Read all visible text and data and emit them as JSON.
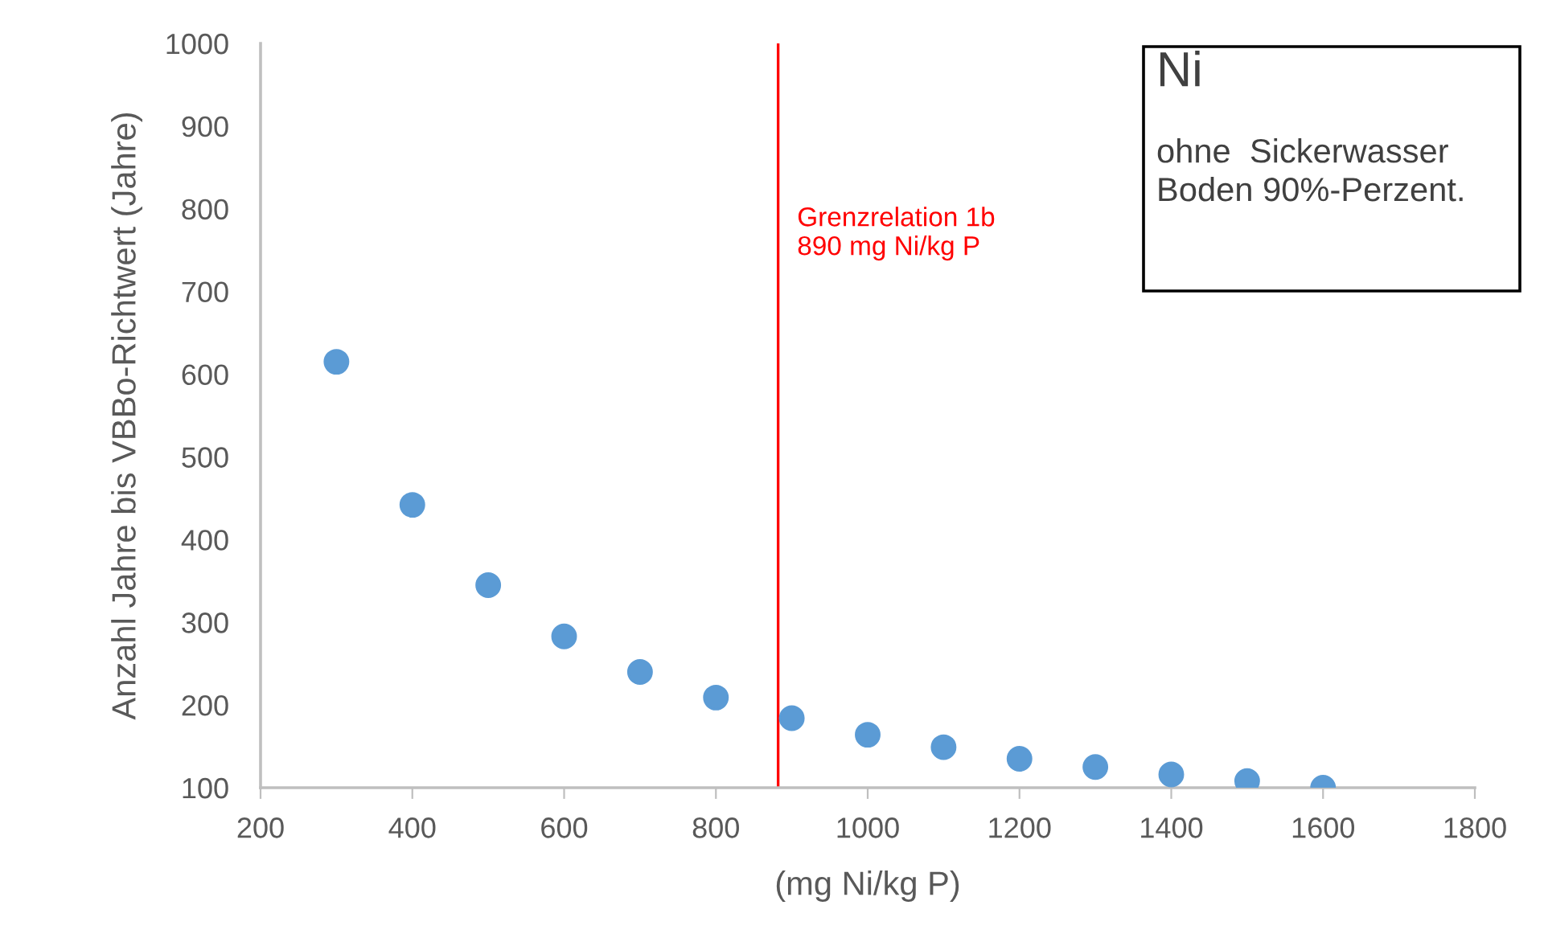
{
  "chart_data": {
    "type": "scatter",
    "xlabel": "(mg Ni/kg P)",
    "ylabel": "Anzahl Jahre bis VBBo-Richtwert (Jahre)",
    "x": [
      300,
      400,
      500,
      600,
      700,
      800,
      900,
      1000,
      1100,
      1200,
      1300,
      1400,
      1500,
      1600
    ],
    "series": [
      {
        "color": "#5b9bd5",
        "values": [
          615,
          442,
          345,
          283,
          240,
          209,
          184,
          164,
          149,
          135,
          125,
          116,
          108,
          100
        ]
      }
    ],
    "marker": "circle",
    "xlim": [
      200,
      1800
    ],
    "xticks": [
      200,
      400,
      600,
      800,
      1000,
      1200,
      1400,
      1600,
      1800
    ],
    "ylim": [
      100,
      1000
    ],
    "yticks": [
      100,
      200,
      300,
      400,
      500,
      600,
      700,
      800,
      900,
      1000
    ],
    "grid": false,
    "legend": false,
    "ref_lines": [
      {
        "axis": "x",
        "value": 882,
        "label": "Grenzrelation 1b\n890 mg Ni/kg P",
        "color": "#ff0000"
      }
    ],
    "annotations": [
      "Ni",
      "ohne  Sickerwasser\nBoden 90%-Perzent."
    ]
  }
}
